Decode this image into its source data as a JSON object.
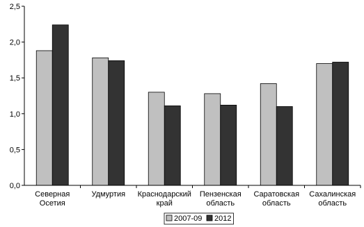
{
  "chart_data": {
    "type": "bar",
    "categories": [
      [
        "Северная",
        "Осетия"
      ],
      [
        "Удмуртия"
      ],
      [
        "Краснодарский",
        "край"
      ],
      [
        "Пензенская",
        "область"
      ],
      [
        "Саратовская",
        "область"
      ],
      [
        "Сахалинская",
        "область"
      ]
    ],
    "series": [
      {
        "name": "2007-09",
        "color": "#c0c0c0",
        "values": [
          1.88,
          1.78,
          1.3,
          1.28,
          1.42,
          1.7
        ]
      },
      {
        "name": "2012",
        "color": "#333333",
        "values": [
          2.24,
          1.74,
          1.11,
          1.12,
          1.1,
          1.72
        ]
      }
    ],
    "yticks": [
      "0,0",
      "0,5",
      "1,0",
      "1,5",
      "2,0",
      "2,5"
    ],
    "ylim": [
      0,
      2.5
    ],
    "grid": false,
    "legend_position": "bottom-center"
  }
}
